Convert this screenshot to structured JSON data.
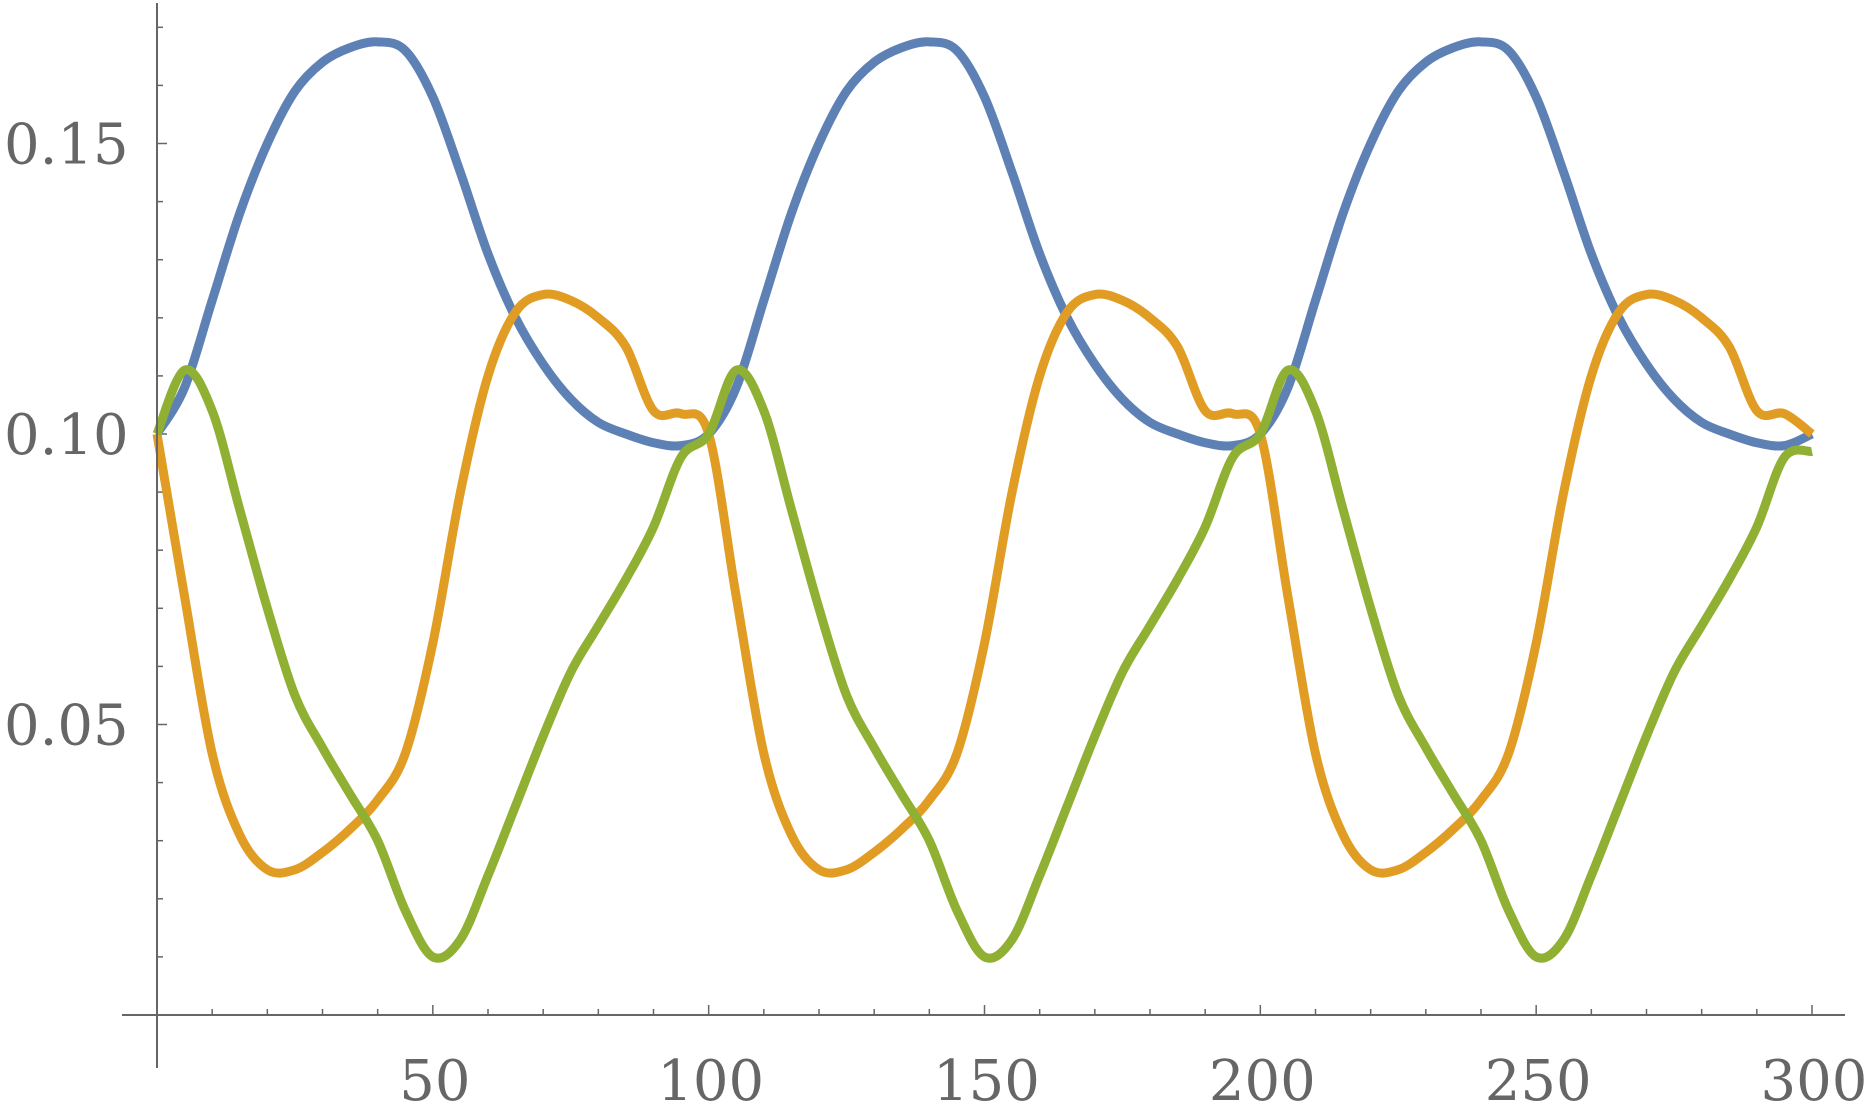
{
  "chart_data": {
    "type": "line",
    "title": "",
    "xlabel": "",
    "ylabel": "",
    "xlim": [
      0,
      300
    ],
    "ylim": [
      0,
      0.175
    ],
    "grid": false,
    "legend": "none",
    "x_ticks": [
      {
        "value": 50,
        "label": "50"
      },
      {
        "value": 100,
        "label": "100"
      },
      {
        "value": 150,
        "label": "150"
      },
      {
        "value": 200,
        "label": "200"
      },
      {
        "value": 250,
        "label": "250"
      },
      {
        "value": 300,
        "label": "300"
      }
    ],
    "y_ticks": [
      {
        "value": 0.05,
        "label": "0.05"
      },
      {
        "value": 0.1,
        "label": "0.10"
      },
      {
        "value": 0.15,
        "label": "0.15"
      }
    ],
    "series": [
      {
        "color": "#5e81b5",
        "x": [
          0,
          5,
          10,
          15,
          20,
          25,
          30,
          35,
          40,
          45,
          50,
          55,
          60,
          65,
          70,
          75,
          80,
          85,
          90,
          95,
          100,
          105,
          110,
          115,
          120,
          125,
          130,
          135,
          140,
          145,
          150,
          155,
          160,
          165,
          170,
          175,
          180,
          185,
          190,
          195,
          200,
          205,
          210,
          215,
          220,
          225,
          230,
          235,
          240,
          245,
          250,
          255,
          260,
          265,
          270,
          275,
          280,
          285,
          290,
          295,
          300
        ],
        "y": [
          0.1,
          0.108,
          0.123,
          0.138,
          0.15,
          0.159,
          0.164,
          0.1665,
          0.1675,
          0.166,
          0.158,
          0.145,
          0.131,
          0.12,
          0.112,
          0.106,
          0.102,
          0.1,
          0.0985,
          0.098,
          0.1,
          0.108,
          0.123,
          0.138,
          0.15,
          0.159,
          0.164,
          0.1665,
          0.1675,
          0.166,
          0.158,
          0.145,
          0.131,
          0.12,
          0.112,
          0.106,
          0.102,
          0.1,
          0.0985,
          0.098,
          0.1,
          0.108,
          0.123,
          0.138,
          0.15,
          0.159,
          0.164,
          0.1665,
          0.1675,
          0.166,
          0.158,
          0.145,
          0.131,
          0.12,
          0.112,
          0.106,
          0.102,
          0.1,
          0.0985,
          0.098,
          0.1
        ]
      },
      {
        "color": "#e19c24",
        "x": [
          0,
          5,
          10,
          15,
          20,
          25,
          30,
          35,
          40,
          45,
          50,
          55,
          60,
          65,
          70,
          75,
          80,
          85,
          90,
          95,
          100,
          105,
          110,
          115,
          120,
          125,
          130,
          135,
          140,
          145,
          150,
          155,
          160,
          165,
          170,
          175,
          180,
          185,
          190,
          195,
          200,
          205,
          210,
          215,
          220,
          225,
          230,
          235,
          240,
          245,
          250,
          255,
          260,
          265,
          270,
          275,
          280,
          285,
          290,
          295,
          300
        ],
        "y": [
          0.1,
          0.072,
          0.045,
          0.031,
          0.025,
          0.025,
          0.028,
          0.032,
          0.037,
          0.045,
          0.064,
          0.09,
          0.11,
          0.121,
          0.124,
          0.123,
          0.12,
          0.115,
          0.104,
          0.1035,
          0.1,
          0.072,
          0.045,
          0.031,
          0.025,
          0.025,
          0.028,
          0.032,
          0.037,
          0.045,
          0.064,
          0.09,
          0.11,
          0.121,
          0.124,
          0.123,
          0.12,
          0.115,
          0.104,
          0.1035,
          0.1,
          0.072,
          0.045,
          0.031,
          0.025,
          0.025,
          0.028,
          0.032,
          0.037,
          0.045,
          0.064,
          0.09,
          0.11,
          0.121,
          0.124,
          0.123,
          0.12,
          0.115,
          0.104,
          0.1035,
          0.1
        ]
      },
      {
        "color": "#8fb032",
        "x": [
          0,
          5,
          10,
          15,
          20,
          25,
          30,
          35,
          40,
          45,
          50,
          55,
          60,
          65,
          70,
          75,
          80,
          85,
          90,
          95,
          100,
          105,
          110,
          115,
          120,
          125,
          130,
          135,
          140,
          145,
          150,
          155,
          160,
          165,
          170,
          175,
          180,
          185,
          190,
          195,
          200,
          205,
          210,
          215,
          220,
          225,
          230,
          235,
          240,
          245,
          250,
          255,
          260,
          265,
          270,
          275,
          280,
          285,
          290,
          295,
          300
        ],
        "y": [
          0.1,
          0.111,
          0.104,
          0.087,
          0.07,
          0.055,
          0.046,
          0.038,
          0.03,
          0.018,
          0.01,
          0.013,
          0.024,
          0.036,
          0.048,
          0.059,
          0.067,
          0.075,
          0.084,
          0.096,
          0.1,
          0.111,
          0.104,
          0.087,
          0.07,
          0.055,
          0.046,
          0.038,
          0.03,
          0.018,
          0.01,
          0.013,
          0.024,
          0.036,
          0.048,
          0.059,
          0.067,
          0.075,
          0.084,
          0.096,
          0.1,
          0.111,
          0.104,
          0.087,
          0.07,
          0.055,
          0.046,
          0.038,
          0.03,
          0.018,
          0.01,
          0.013,
          0.024,
          0.036,
          0.048,
          0.059,
          0.067,
          0.075,
          0.084,
          0.096,
          0.097
        ]
      }
    ]
  }
}
